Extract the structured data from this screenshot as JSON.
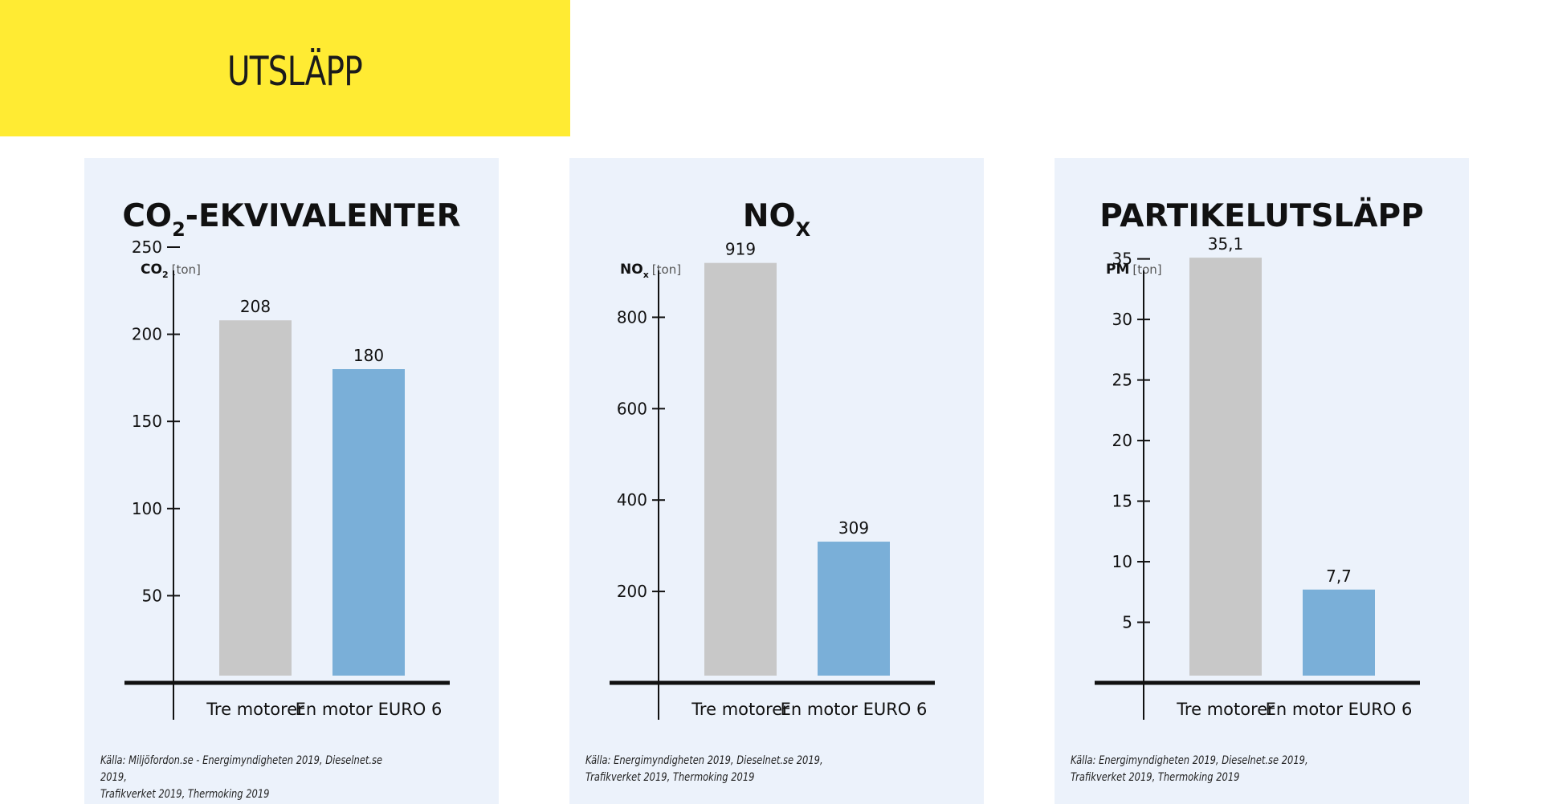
{
  "page": {
    "title": "UTSLÄPP",
    "banner_color": "#ffeb33",
    "card_color": "#ecf2fb"
  },
  "colors": {
    "tre_motorer": "#c8c8c8",
    "en_motor": "#7aafd8",
    "axis": "#111111"
  },
  "chart_data": [
    {
      "type": "bar",
      "title": "CO",
      "title_sub": "2",
      "title_suffix": "-EKVIVALENTER",
      "ylabel": "CO",
      "ylabel_sub": "2",
      "ylabel_unit": "[ton]",
      "categories": [
        "Tre motorer",
        "En motor EURO 6"
      ],
      "values": [
        208,
        180
      ],
      "value_labels": [
        "208",
        "180"
      ],
      "yticks": [
        50,
        100,
        150,
        200,
        250
      ],
      "ytick_labels": [
        "50",
        "100",
        "150",
        "200",
        "250"
      ],
      "ylim": [
        0,
        250
      ],
      "grid": false,
      "source": [
        "Källa: Miljöfordon.se - Energimyndigheten 2019, Dieselnet.se 2019,",
        "Trafikverket 2019, Thermoking 2019"
      ]
    },
    {
      "type": "bar",
      "title": "NO",
      "title_sub": "X",
      "title_suffix": "",
      "ylabel": "NO",
      "ylabel_sub": "x",
      "ylabel_unit": "[ton]",
      "categories": [
        "Tre motorer",
        "En motor EURO 6"
      ],
      "values": [
        919,
        309
      ],
      "value_labels": [
        "919",
        "309"
      ],
      "yticks": [
        200,
        400,
        600,
        800
      ],
      "ytick_labels": [
        "200",
        "400",
        "600",
        "800"
      ],
      "ylim": [
        0,
        950
      ],
      "grid": false,
      "source": [
        "Källa: Energimyndigheten 2019, Dieselnet.se 2019,",
        "Trafikverket 2019, Thermoking 2019"
      ]
    },
    {
      "type": "bar",
      "title": "PARTIKELUTSLÄPP",
      "title_sub": "",
      "title_suffix": "",
      "ylabel": "PM",
      "ylabel_sub": "",
      "ylabel_unit": "[ton]",
      "categories": [
        "Tre motorer",
        "En motor EURO 6"
      ],
      "values": [
        35.1,
        7.7
      ],
      "value_labels": [
        "35,1",
        "7,7"
      ],
      "yticks": [
        5,
        10,
        15,
        20,
        25,
        30,
        35
      ],
      "ytick_labels": [
        "5",
        "10",
        "15",
        "20",
        "25",
        "30",
        "35"
      ],
      "ylim": [
        0,
        36.5
      ],
      "grid": false,
      "source": [
        "Källa: Energimyndigheten 2019, Dieselnet.se 2019,",
        "Trafikverket 2019, Thermoking 2019"
      ]
    }
  ]
}
